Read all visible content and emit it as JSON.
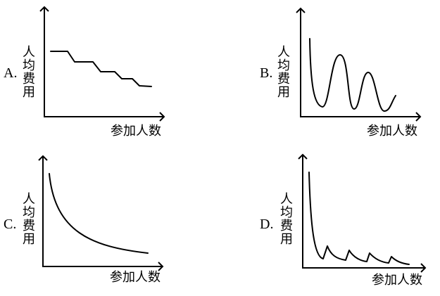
{
  "panels": [
    {
      "id": "A",
      "option_label": "A.",
      "y_label_chars": [
        "人",
        "均",
        "费",
        "用"
      ],
      "x_label": "参加人数",
      "curve_shape": "descending-step"
    },
    {
      "id": "B",
      "option_label": "B.",
      "y_label_chars": [
        "人",
        "均",
        "费",
        "用"
      ],
      "x_label": "参加人数",
      "curve_shape": "oscillating-wave"
    },
    {
      "id": "C",
      "option_label": "C.",
      "y_label_chars": [
        "人",
        "均",
        "费",
        "用"
      ],
      "x_label": "参加人数",
      "curve_shape": "smooth-decay"
    },
    {
      "id": "D",
      "option_label": "D.",
      "y_label_chars": [
        "人",
        "均",
        "费",
        "用"
      ],
      "x_label": "参加人数",
      "curve_shape": "sawtooth-decay"
    }
  ]
}
